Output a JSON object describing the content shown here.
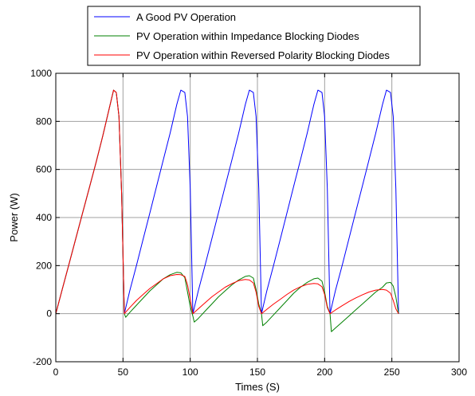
{
  "chart_data": {
    "type": "line",
    "xlabel": "Times (S)",
    "ylabel": "Power (W)",
    "xlim": [
      0,
      300
    ],
    "ylim": [
      -200,
      1000
    ],
    "xticks": [
      0,
      50,
      100,
      150,
      200,
      250,
      300
    ],
    "yticks": [
      -200,
      0,
      200,
      400,
      600,
      800,
      1000
    ],
    "grid": true,
    "legend_position": "top-center",
    "series": [
      {
        "name": "A Good PV Operation",
        "color": "#0000ff",
        "x": [
          0,
          5,
          10,
          15,
          20,
          25,
          30,
          35,
          40,
          43,
          45,
          47,
          49,
          51,
          55,
          60,
          65,
          70,
          75,
          80,
          85,
          90,
          93,
          96,
          98,
          100,
          102,
          106,
          111,
          116,
          121,
          126,
          131,
          136,
          141,
          144,
          147,
          149,
          151,
          153,
          157,
          162,
          167,
          172,
          177,
          182,
          187,
          192,
          195,
          198,
          200,
          202,
          204,
          208,
          213,
          218,
          223,
          228,
          233,
          238,
          243,
          246,
          249,
          251,
          253,
          255
        ],
        "y": [
          0,
          105,
          210,
          315,
          420,
          525,
          630,
          740,
          860,
          930,
          920,
          820,
          500,
          0,
          95,
          200,
          310,
          420,
          530,
          640,
          750,
          870,
          930,
          920,
          820,
          520,
          0,
          95,
          200,
          310,
          420,
          530,
          640,
          750,
          870,
          930,
          920,
          820,
          520,
          0,
          95,
          200,
          310,
          420,
          530,
          640,
          750,
          870,
          930,
          920,
          820,
          520,
          0,
          95,
          200,
          310,
          420,
          530,
          640,
          750,
          870,
          930,
          920,
          820,
          520,
          0
        ]
      },
      {
        "name": "PV Operation within Impedance Blocking Diodes",
        "color": "#008000",
        "x": [
          0,
          5,
          10,
          15,
          20,
          25,
          30,
          35,
          40,
          43,
          45,
          47,
          49,
          51,
          52,
          55,
          60,
          65,
          70,
          75,
          80,
          85,
          90,
          93,
          96,
          98,
          100,
          102,
          103,
          106,
          111,
          116,
          121,
          126,
          131,
          136,
          141,
          144,
          147,
          149,
          151,
          153,
          154,
          157,
          162,
          167,
          172,
          177,
          182,
          187,
          192,
          195,
          198,
          200,
          202,
          204,
          205,
          208,
          213,
          218,
          223,
          228,
          233,
          238,
          243,
          246,
          249,
          251,
          253,
          255
        ],
        "y": [
          0,
          105,
          210,
          315,
          420,
          525,
          630,
          740,
          860,
          930,
          920,
          820,
          500,
          0,
          -15,
          5,
          35,
          65,
          95,
          120,
          145,
          162,
          172,
          170,
          150,
          90,
          30,
          -10,
          -35,
          -20,
          10,
          40,
          70,
          95,
          120,
          140,
          155,
          158,
          148,
          100,
          40,
          0,
          -50,
          -35,
          -5,
          25,
          55,
          85,
          110,
          130,
          145,
          148,
          135,
          90,
          30,
          0,
          -75,
          -60,
          -35,
          -10,
          15,
          40,
          65,
          90,
          110,
          128,
          130,
          115,
          70,
          0
        ]
      },
      {
        "name": "PV Operation within Reversed Polarity Blocking Diodes",
        "color": "#ff0000",
        "x": [
          0,
          5,
          10,
          15,
          20,
          25,
          30,
          35,
          40,
          43,
          45,
          47,
          49,
          51,
          55,
          60,
          65,
          70,
          75,
          80,
          85,
          90,
          93,
          96,
          98,
          100,
          102,
          106,
          111,
          116,
          121,
          126,
          131,
          136,
          141,
          144,
          147,
          149,
          151,
          153,
          157,
          162,
          167,
          172,
          177,
          182,
          187,
          192,
          195,
          198,
          200,
          202,
          204,
          208,
          213,
          218,
          223,
          228,
          233,
          238,
          243,
          246,
          249,
          251,
          253,
          255
        ],
        "y": [
          0,
          105,
          210,
          315,
          420,
          525,
          630,
          740,
          860,
          930,
          920,
          820,
          500,
          0,
          25,
          55,
          80,
          105,
          125,
          145,
          158,
          163,
          162,
          155,
          120,
          60,
          0,
          20,
          45,
          70,
          90,
          110,
          125,
          137,
          142,
          140,
          128,
          90,
          30,
          0,
          18,
          40,
          60,
          80,
          98,
          112,
          122,
          126,
          124,
          112,
          80,
          25,
          0,
          15,
          33,
          50,
          65,
          78,
          90,
          98,
          101,
          98,
          85,
          55,
          20,
          0
        ]
      }
    ]
  }
}
